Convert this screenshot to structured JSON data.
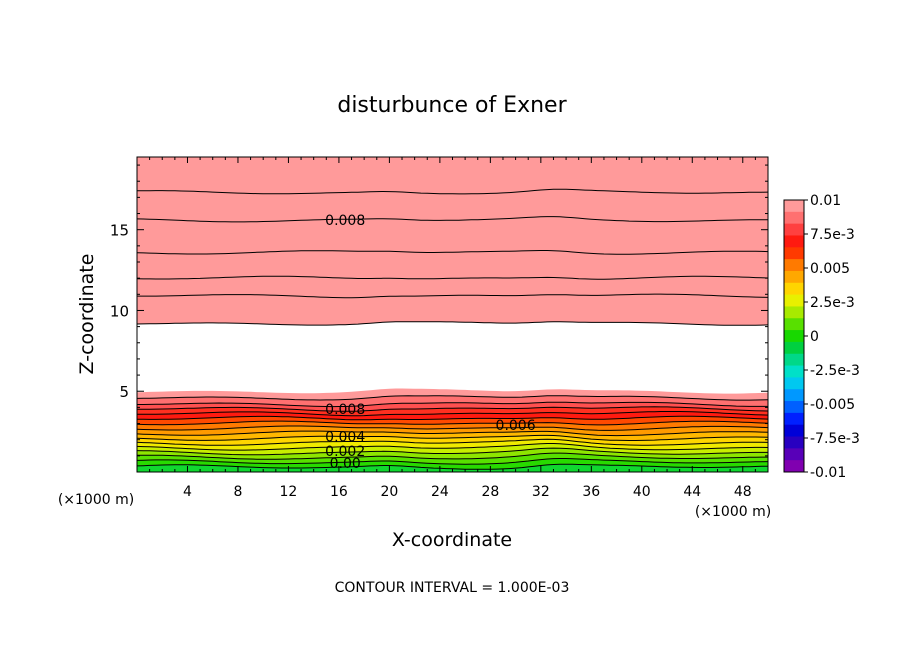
{
  "chart_data": {
    "type": "contour",
    "title": "disturbunce of Exner",
    "xlabel": "X-coordinate",
    "ylabel": "Z-coordinate",
    "x_unit_left": "(×1000 m)",
    "x_unit_right": "(×1000 m)",
    "footer": "CONTOUR INTERVAL = 1.000E-03",
    "xlim": [
      0,
      50
    ],
    "ylim": [
      0,
      19.5
    ],
    "x_ticks": [
      4,
      8,
      12,
      16,
      20,
      24,
      28,
      32,
      36,
      40,
      44,
      48
    ],
    "y_ticks": [
      5,
      10,
      15
    ],
    "contour_interval": 0.001,
    "contour_labels": [
      {
        "text": "0.008",
        "x": 16.5,
        "z": 15.6
      },
      {
        "text": "0.008",
        "x": 16.5,
        "z": 3.9
      },
      {
        "text": "0.006",
        "x": 30.0,
        "z": 2.9
      },
      {
        "text": "0.004",
        "x": 16.5,
        "z": 2.2
      },
      {
        "text": "0.002",
        "x": 16.5,
        "z": 1.3
      },
      {
        "text": "0.00",
        "x": 16.5,
        "z": 0.55
      }
    ],
    "upper_region_boundaries_z": {
      "0.010": 9.2,
      "0.009": 10.9,
      "0.008": 12.0,
      "0.007": 13.6,
      "0.006": 15.6,
      "0.005": 17.3,
      "0.004": 18.7
    },
    "lower_region_boundaries_z": [
      0.3,
      0.6,
      0.9,
      1.2,
      1.5,
      1.8,
      2.1,
      2.4,
      2.7,
      3.0,
      3.3,
      3.6,
      3.9,
      4.2,
      4.6,
      5.0
    ],
    "colorbar": {
      "ticks": [
        "0.01",
        "7.5e-3",
        "0.005",
        "2.5e-3",
        "0",
        "-2.5e-3",
        "-0.005",
        "-7.5e-3",
        "-0.01"
      ],
      "colors": [
        "#ff9a9a",
        "#ff7070",
        "#ff4040",
        "#ff1a10",
        "#ff3a00",
        "#ff7a00",
        "#ffa800",
        "#ffd500",
        "#e8f000",
        "#a8ea00",
        "#58e000",
        "#18d800",
        "#00d040",
        "#00d888",
        "#00e0c8",
        "#00c8f0",
        "#0098ff",
        "#0060ff",
        "#0020ff",
        "#0000d8",
        "#2800c0",
        "#5800b8",
        "#8000b0"
      ]
    }
  }
}
